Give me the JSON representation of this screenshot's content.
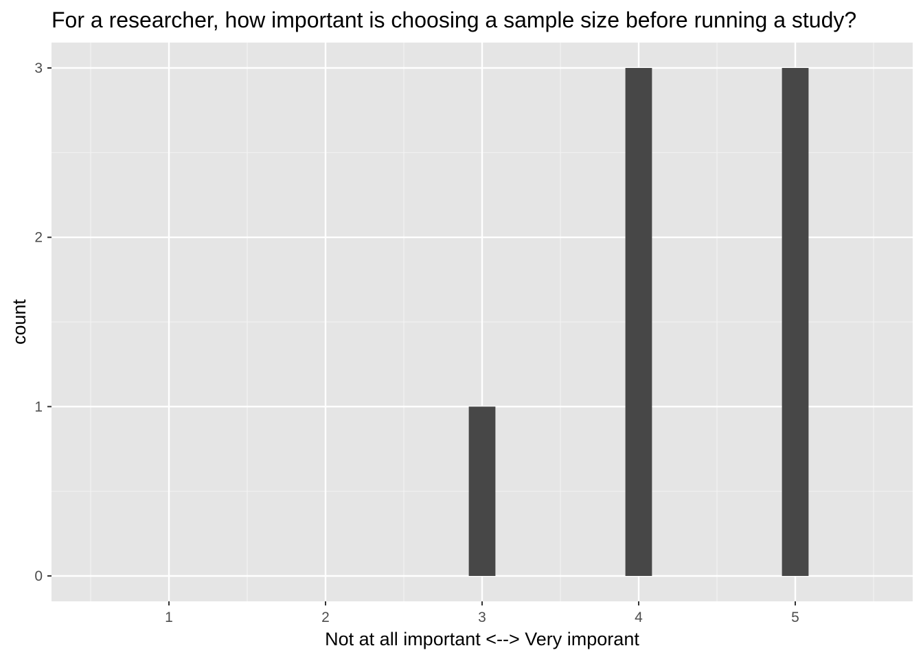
{
  "chart_data": {
    "type": "bar",
    "title": "For a researcher, how important is choosing a sample size before running a study?",
    "xlabel": "Not at all important <--> Very imporant",
    "ylabel": "count",
    "categories": [
      "1",
      "2",
      "3",
      "4",
      "5"
    ],
    "x": [
      1,
      2,
      3,
      4,
      5
    ],
    "values": [
      0,
      0,
      1,
      3,
      3
    ],
    "xlim": [
      0.25,
      5.75
    ],
    "ylim": [
      -0.15,
      3.15
    ],
    "x_ticks": [
      1,
      2,
      3,
      4,
      5
    ],
    "y_ticks": [
      0,
      1,
      2,
      3
    ],
    "y_tick_labels": [
      "0",
      "1",
      "2",
      "3"
    ],
    "bar_width": 0.17,
    "grid": true,
    "colors": {
      "panel_background": "#e5e5e5",
      "grid_major": "#ffffff",
      "grid_minor": "#f2f2f2",
      "bar_fill": "#474747",
      "tick_text": "#4d4d4d",
      "tick_mark": "#333333",
      "title_text": "#000000"
    }
  }
}
